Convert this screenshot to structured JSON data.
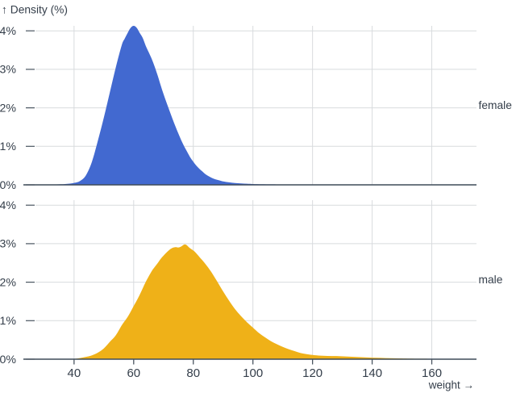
{
  "chart_data": {
    "type": "area",
    "variant": "faceted-density",
    "title": "",
    "xlabel": "weight →",
    "ylabel": "↑ Density (%)",
    "x_domain": [
      23,
      175
    ],
    "y_domain": [
      0,
      4.13
    ],
    "x_ticks": [
      40,
      60,
      80,
      100,
      120,
      140,
      160
    ],
    "y_ticks": [
      0,
      1,
      2,
      3,
      4
    ],
    "y_tick_suffix": "%",
    "grid": true,
    "facets": [
      {
        "label": "female",
        "color": "#4269d0",
        "points": [
          [
            23,
            0
          ],
          [
            30,
            0.005
          ],
          [
            34,
            0.01
          ],
          [
            37,
            0.02
          ],
          [
            40,
            0.05
          ],
          [
            42,
            0.1
          ],
          [
            44,
            0.25
          ],
          [
            46,
            0.6
          ],
          [
            48,
            1.15
          ],
          [
            50,
            1.75
          ],
          [
            52,
            2.4
          ],
          [
            54,
            3.05
          ],
          [
            56,
            3.63
          ],
          [
            57,
            3.8
          ],
          [
            58,
            3.95
          ],
          [
            59,
            4.08
          ],
          [
            60,
            4.13
          ],
          [
            61,
            4.08
          ],
          [
            62,
            3.95
          ],
          [
            63,
            3.82
          ],
          [
            64,
            3.62
          ],
          [
            65,
            3.45
          ],
          [
            66,
            3.28
          ],
          [
            67,
            3.08
          ],
          [
            68,
            2.85
          ],
          [
            69,
            2.6
          ],
          [
            70,
            2.36
          ],
          [
            71,
            2.14
          ],
          [
            72,
            1.93
          ],
          [
            73,
            1.72
          ],
          [
            74,
            1.52
          ],
          [
            75,
            1.33
          ],
          [
            76,
            1.15
          ],
          [
            77,
            0.99
          ],
          [
            78,
            0.85
          ],
          [
            79,
            0.71
          ],
          [
            80,
            0.6
          ],
          [
            81,
            0.5
          ],
          [
            82,
            0.42
          ],
          [
            83,
            0.35
          ],
          [
            84,
            0.28
          ],
          [
            85,
            0.23
          ],
          [
            86,
            0.19
          ],
          [
            87,
            0.155
          ],
          [
            88,
            0.13
          ],
          [
            89,
            0.11
          ],
          [
            90,
            0.09
          ],
          [
            92,
            0.065
          ],
          [
            94,
            0.048
          ],
          [
            96,
            0.036
          ],
          [
            98,
            0.028
          ],
          [
            100,
            0.022
          ],
          [
            103,
            0.016
          ],
          [
            106,
            0.012
          ],
          [
            110,
            0.009
          ],
          [
            116,
            0.006
          ],
          [
            124,
            0.004
          ],
          [
            134,
            0.003
          ],
          [
            146,
            0.002
          ],
          [
            158,
            0.0015
          ],
          [
            168,
            0.001
          ],
          [
            175,
            0.001
          ]
        ]
      },
      {
        "label": "male",
        "color": "#efb118",
        "points": [
          [
            23,
            0
          ],
          [
            36,
            0.004
          ],
          [
            40,
            0.01
          ],
          [
            42,
            0.03
          ],
          [
            44,
            0.06
          ],
          [
            46,
            0.1
          ],
          [
            48,
            0.17
          ],
          [
            50,
            0.28
          ],
          [
            52,
            0.45
          ],
          [
            54,
            0.62
          ],
          [
            56,
            0.88
          ],
          [
            58,
            1.1
          ],
          [
            60,
            1.38
          ],
          [
            62,
            1.67
          ],
          [
            64,
            2.0
          ],
          [
            66,
            2.28
          ],
          [
            67,
            2.39
          ],
          [
            68,
            2.49
          ],
          [
            69,
            2.6
          ],
          [
            70,
            2.69
          ],
          [
            71,
            2.77
          ],
          [
            72,
            2.84
          ],
          [
            73,
            2.89
          ],
          [
            74,
            2.91
          ],
          [
            75,
            2.9
          ],
          [
            76,
            2.93
          ],
          [
            77,
            2.98
          ],
          [
            77.8,
            2.96
          ],
          [
            78.6,
            2.9
          ],
          [
            79.5,
            2.85
          ],
          [
            80.5,
            2.79
          ],
          [
            82,
            2.66
          ],
          [
            84,
            2.48
          ],
          [
            86,
            2.27
          ],
          [
            88,
            2.02
          ],
          [
            90,
            1.76
          ],
          [
            92,
            1.52
          ],
          [
            94,
            1.3
          ],
          [
            96,
            1.12
          ],
          [
            98,
            0.96
          ],
          [
            100,
            0.82
          ],
          [
            102,
            0.68
          ],
          [
            104,
            0.57
          ],
          [
            106,
            0.47
          ],
          [
            108,
            0.39
          ],
          [
            110,
            0.32
          ],
          [
            112,
            0.26
          ],
          [
            114,
            0.21
          ],
          [
            116,
            0.16
          ],
          [
            118,
            0.13
          ],
          [
            120,
            0.11
          ],
          [
            122,
            0.095
          ],
          [
            125,
            0.085
          ],
          [
            128,
            0.08
          ],
          [
            131,
            0.07
          ],
          [
            134,
            0.06
          ],
          [
            137,
            0.05
          ],
          [
            140,
            0.04
          ],
          [
            143,
            0.035
          ],
          [
            146,
            0.025
          ],
          [
            149,
            0.02
          ],
          [
            152,
            0.015
          ],
          [
            156,
            0.012
          ],
          [
            160,
            0.01
          ],
          [
            165,
            0.007
          ],
          [
            170,
            0.004
          ],
          [
            175,
            0.002
          ]
        ]
      }
    ],
    "legend_position": "right-facet-labels"
  },
  "colors": {
    "background": "#ffffff",
    "text": "#343e4a",
    "grid": "#d8dbde",
    "axis_rule": "#3f4c59",
    "tick_mark": "#4a5560",
    "female_fill": "#4269d0",
    "male_fill": "#efb118"
  }
}
